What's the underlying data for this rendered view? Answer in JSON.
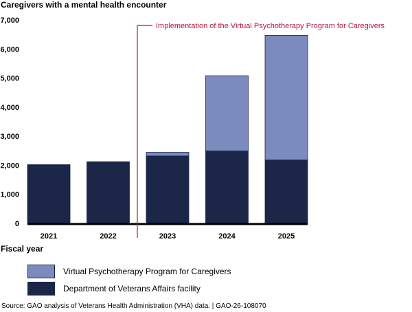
{
  "chart_data": {
    "type": "bar",
    "stacked": true,
    "title": "Caregivers with a mental health encounter",
    "xlabel": "Fiscal year",
    "ylabel": "",
    "ylim": [
      0,
      7000
    ],
    "yticks": [
      0,
      1000,
      2000,
      3000,
      4000,
      5000,
      6000,
      7000
    ],
    "ytick_labels": [
      "0",
      "1,000",
      "2,000",
      "3,000",
      "4,000",
      "5,000",
      "6,000",
      "7,000"
    ],
    "categories": [
      "2021",
      "2022",
      "2023",
      "2024",
      "2025"
    ],
    "series": [
      {
        "name": "Department of Veterans Affairs facility",
        "color": "#1b2648",
        "values": [
          2020,
          2120,
          2320,
          2490,
          2180
        ]
      },
      {
        "name": "Virtual Psychotherapy Program for Caregivers",
        "color": "#7b8bbd",
        "values": [
          0,
          0,
          130,
          2590,
          4290
        ]
      }
    ],
    "annotation": {
      "text": "Implementation of the Virtual Psychotherapy Program for Caregivers",
      "color": "#b5173c",
      "between": [
        "2022",
        "2023"
      ]
    },
    "grid": false,
    "legend_placement": "bottom-left"
  },
  "legend": [
    {
      "label": "Virtual Psychotherapy Program for Caregivers",
      "color": "#7b8bbd"
    },
    {
      "label": "Department of Veterans Affairs facility",
      "color": "#1b2648"
    }
  ],
  "source": "Source: GAO analysis of Veterans Health Administration (VHA) data.  |  GAO-26-108070"
}
